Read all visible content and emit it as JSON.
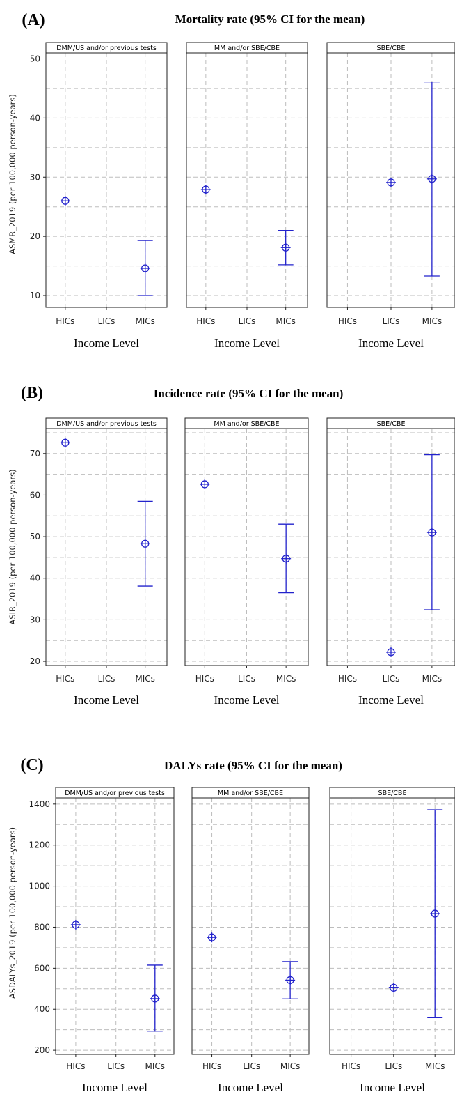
{
  "chart_data": [
    {
      "type": "errorbar",
      "panel_label": "(A)",
      "title": "Mortality rate (95% CI for the mean)",
      "ylabel": "ASMR_2019 (per 100,000 person-years)",
      "xlabel": "Income Level",
      "ylim": [
        8,
        51
      ],
      "yticks": [
        10,
        20,
        30,
        40,
        50
      ],
      "categories": [
        "HICs",
        "LICs",
        "MICs"
      ],
      "facets": [
        {
          "name": "DMM/US and/or previous tests",
          "points": [
            {
              "category": "HICs",
              "mean": 26.0
            },
            {
              "category": "MICs",
              "mean": 14.6,
              "lower": 10.0,
              "upper": 19.3
            }
          ]
        },
        {
          "name": "MM and/or SBE/CBE",
          "points": [
            {
              "category": "HICs",
              "mean": 27.9
            },
            {
              "category": "MICs",
              "mean": 18.1,
              "lower": 15.2,
              "upper": 21.0
            }
          ]
        },
        {
          "name": "SBE/CBE",
          "points": [
            {
              "category": "LICs",
              "mean": 29.1
            },
            {
              "category": "MICs",
              "mean": 29.7,
              "lower": 13.3,
              "upper": 46.1
            }
          ]
        }
      ]
    },
    {
      "type": "errorbar",
      "panel_label": "(B)",
      "title": "Incidence rate (95% CI for the mean)",
      "ylabel": "ASIR_2019 (per 100,000 person-years)",
      "xlabel": "Income Level",
      "ylim": [
        19,
        76
      ],
      "yticks": [
        20,
        30,
        40,
        50,
        60,
        70
      ],
      "categories": [
        "HICs",
        "LICs",
        "MICs"
      ],
      "facets": [
        {
          "name": "DMM/US and/or previous tests",
          "points": [
            {
              "category": "HICs",
              "mean": 72.6
            },
            {
              "category": "MICs",
              "mean": 48.3,
              "lower": 38.1,
              "upper": 58.5
            }
          ]
        },
        {
          "name": "MM and/or SBE/CBE",
          "points": [
            {
              "category": "HICs",
              "mean": 62.6
            },
            {
              "category": "MICs",
              "mean": 44.7,
              "lower": 36.5,
              "upper": 53.0
            }
          ]
        },
        {
          "name": "SBE/CBE",
          "points": [
            {
              "category": "LICs",
              "mean": 22.2
            },
            {
              "category": "MICs",
              "mean": 51.0,
              "lower": 32.4,
              "upper": 69.7
            }
          ]
        }
      ]
    },
    {
      "type": "errorbar",
      "panel_label": "(C)",
      "title": "DALYs rate (95% CI for the mean)",
      "ylabel": "ASDALYs_2019 (per 100,000 person-years)",
      "xlabel": "Income Level",
      "ylim": [
        180,
        1430
      ],
      "yticks": [
        200,
        400,
        600,
        800,
        1000,
        1200,
        1400
      ],
      "categories": [
        "HICs",
        "LICs",
        "MICs"
      ],
      "facets": [
        {
          "name": "DMM/US and/or previous tests",
          "points": [
            {
              "category": "HICs",
              "mean": 812
            },
            {
              "category": "MICs",
              "mean": 452,
              "lower": 293,
              "upper": 615
            }
          ]
        },
        {
          "name": "MM and/or SBE/CBE",
          "points": [
            {
              "category": "HICs",
              "mean": 750
            },
            {
              "category": "MICs",
              "mean": 542,
              "lower": 451,
              "upper": 632
            }
          ]
        },
        {
          "name": "SBE/CBE",
          "points": [
            {
              "category": "LICs",
              "mean": 505
            },
            {
              "category": "MICs",
              "mean": 866,
              "lower": 359,
              "upper": 1372
            }
          ]
        }
      ]
    }
  ],
  "colors": {
    "marker": "#2222cc",
    "grid": "#bdbdbd",
    "axis": "#222222",
    "strip_fill": "#ffffff"
  }
}
